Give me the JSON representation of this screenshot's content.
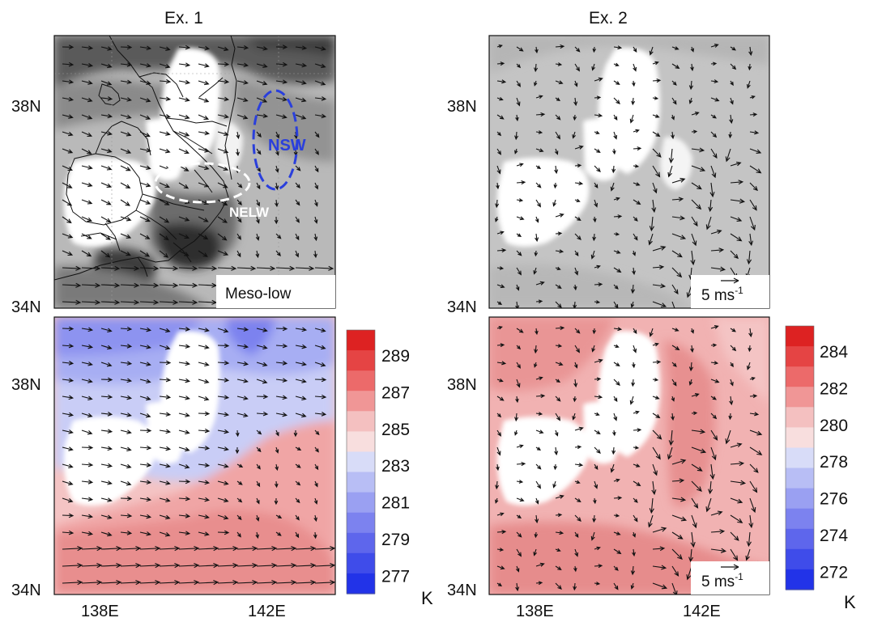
{
  "panels": {
    "ex1": {
      "title": "Ex. 1"
    },
    "ex2": {
      "title": "Ex. 2"
    }
  },
  "annotations": {
    "nsw": "NSW",
    "nelw": "NELW",
    "meso_low": "Meso-low",
    "ref_vector_value": "5",
    "ref_vector_unit": "ms",
    "ref_vector_exp": "-1"
  },
  "axes": {
    "lat_top": "38N",
    "lat_bottom": "34N",
    "lon_left": "138E",
    "lon_right": "142E"
  },
  "colorbars": {
    "left": {
      "labels": [
        "289",
        "287",
        "285",
        "283",
        "281",
        "279",
        "277"
      ],
      "unit": "K",
      "colors": [
        "#dd2222",
        "#e54444",
        "#ec6a6a",
        "#f09696",
        "#f4c0c0",
        "#f8dede",
        "#d8dcf8",
        "#b8bef5",
        "#9aa0f2",
        "#7c82ef",
        "#5e66ec",
        "#3f4cea",
        "#2233e8"
      ]
    },
    "right": {
      "labels": [
        "284",
        "282",
        "280",
        "278",
        "276",
        "274",
        "272"
      ],
      "unit": "K",
      "colors": [
        "#dd2222",
        "#e54444",
        "#ec6a6a",
        "#f09696",
        "#f4c0c0",
        "#f8dede",
        "#d8dcf8",
        "#b8bef5",
        "#9aa0f2",
        "#7c82ef",
        "#5e66ec",
        "#3f4cea",
        "#2233e8"
      ]
    }
  },
  "colors": {
    "nsw_blue": "#2a3fdc",
    "nelw_white": "#ffffff",
    "gray_dark": "#4a4a4a",
    "gray_mid": "#8a8a8a",
    "gray_light": "#b9b9b9",
    "warm_strong": "#e88888",
    "warm_light": "#f2c4c4",
    "cool_mid": "#a7aef3",
    "cool_strong": "#6670ee"
  }
}
